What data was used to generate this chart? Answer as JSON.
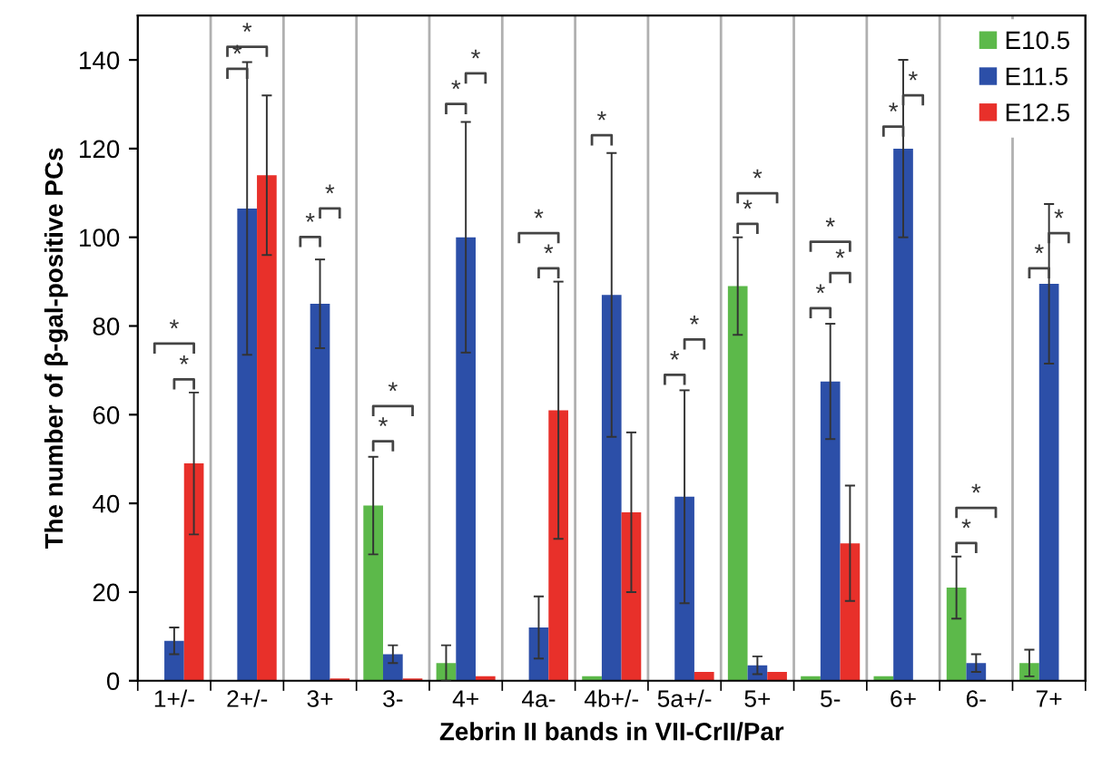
{
  "chart_data": {
    "type": "bar",
    "xlabel": "Zebrin II bands in VII-CrII/Par",
    "ylabel": "The number of β-gal-positive PCs",
    "categories": [
      "1+/-",
      "2+/-",
      "3+",
      "3-",
      "4+",
      "4a-",
      "4b+/-",
      "5a+/-",
      "5+",
      "5-",
      "6+",
      "6-",
      "7+"
    ],
    "series": [
      {
        "name": "E10.5",
        "color": "#5cb94a",
        "values": [
          0,
          0,
          0,
          39.5,
          4,
          0,
          1,
          0,
          89,
          1,
          1,
          21,
          4
        ],
        "errors": [
          null,
          null,
          null,
          11,
          4,
          null,
          null,
          null,
          11,
          null,
          null,
          7,
          3
        ]
      },
      {
        "name": "E11.5",
        "color": "#2c4fa8",
        "values": [
          9,
          106.5,
          85,
          6,
          100,
          12,
          87,
          41.5,
          3.5,
          67.5,
          120,
          4,
          89.5
        ],
        "errors": [
          3,
          33,
          10,
          2,
          26,
          7,
          32,
          24,
          2,
          13,
          20,
          2,
          18
        ]
      },
      {
        "name": "E12.5",
        "color": "#e8302a",
        "values": [
          49,
          114,
          0.5,
          0.5,
          1,
          61,
          38,
          2,
          2,
          31,
          0,
          0,
          0
        ],
        "errors": [
          16,
          18,
          null,
          null,
          null,
          29,
          18,
          null,
          null,
          13,
          null,
          null,
          null
        ]
      }
    ],
    "ylim": [
      0,
      150
    ],
    "yticks": [
      0,
      20,
      40,
      60,
      80,
      100,
      120,
      140
    ],
    "grid": "x",
    "legend": "top right",
    "annotations": [
      "*",
      "*",
      "*",
      "*",
      "*",
      "*",
      "*",
      "*",
      "*",
      "*",
      "*",
      "*",
      "*",
      "*",
      "*",
      "*",
      "*",
      "*",
      "*",
      "*",
      "*",
      "*",
      "*",
      "*",
      "*",
      "*"
    ]
  }
}
